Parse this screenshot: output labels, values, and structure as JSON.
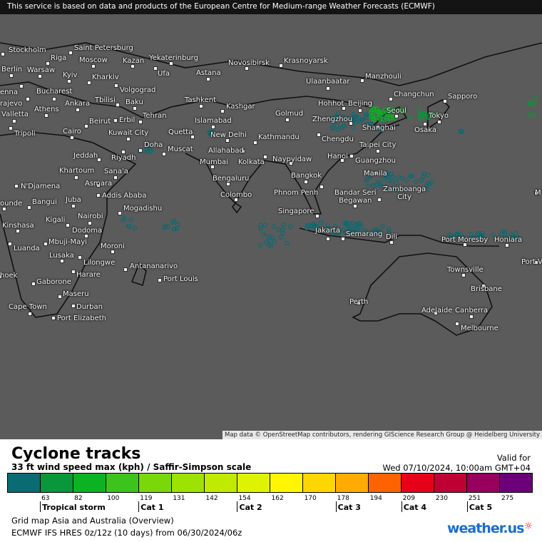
{
  "header": {
    "notice": "This service is based on data and products of the European Centre for Medium-range Weather Forecasts (ECMWF)"
  },
  "map": {
    "attribution": "Map data © OpenStreetMap contributors, rendering GIScience Research Group @ Heidelberg University",
    "background_color": "#5b5b5b",
    "cities": [
      "Stockholm",
      "Saint Petersburg",
      "Riga",
      "Moscow",
      "Kazan",
      "Yekaterinburg",
      "Novosibirsk",
      "Krasnoyarsk",
      "Berlin",
      "Warsaw",
      "Kyiv",
      "Kharkiv",
      "Ufa",
      "Astana",
      "Ulaanbaatar",
      "Manzhouli",
      "enna",
      "Bucharest",
      "Volgograd",
      "Tbilisi",
      "Baku",
      "Tashkent",
      "Kashgar",
      "rajevo",
      "Ankara",
      "Athens",
      "Valletta",
      "Beirut",
      "Erbil",
      "Tehran",
      "Islamabad",
      "Hohhot",
      "Beijing",
      "Changchun",
      "Sapporo",
      "Golmud",
      "Zhengzhou",
      "Seoul",
      "Tokyo",
      "Shanghai",
      "Osaka",
      "Tripoli",
      "Cairo",
      "Kuwait City",
      "Quetta",
      "New Delhi",
      "Kathmandu",
      "Chengdu",
      "Taipei City",
      "Doha",
      "Muscat",
      "Allahabad",
      "Kolkata",
      "Jeddah",
      "Riyadh",
      "Mumbai",
      "Hanoi",
      "Guangzhou",
      "Naypyidaw",
      "Khartoum",
      "Sana'a",
      "Bengaluru",
      "N'Djamena",
      "Asmara",
      "Manila",
      "Bangkok",
      "Addis Ababa",
      "Colombo",
      "Zamboanga City",
      "Phnom Penh",
      "Bandar Seri Begawan",
      "Bangui",
      "Juba",
      "ounde",
      "Mogadishu",
      "Singapore",
      "Kinshasa",
      "Kigali",
      "Nairobi",
      "Dodoma",
      "Jakarta",
      "Semarang",
      "Dili",
      "Port Moresby",
      "Honiara",
      "Mbuji-Mayi",
      "Luanda",
      "Moroni",
      "Lusaka",
      "Lilongwe",
      "Port V",
      "Antananarivo",
      "Townsville",
      "hoek",
      "Harare",
      "Port Louis",
      "Gaborone",
      "Brisbane",
      "Maseru",
      "Durban",
      "Cape Town",
      "Perth",
      "Adelaide",
      "Canberra",
      "Port Elizabeth",
      "Melbourne",
      "M"
    ]
  },
  "legend": {
    "title": "Cyclone tracks",
    "subtitle": "33 ft wind speed max (kph) / Saffir-Simpson scale",
    "valid_label": "Valid for",
    "valid_date": "Wed 07/10/2024, 10:00am GMT+04",
    "colors": [
      "#0b6b72",
      "#0a963a",
      "#0bb222",
      "#3cc41c",
      "#7ad80a",
      "#9de200",
      "#c0ea00",
      "#def300",
      "#fff600",
      "#ffd600",
      "#ffab00",
      "#ff6300",
      "#e60019",
      "#bf0033",
      "#97005c",
      "#6b0078"
    ],
    "ticks": [
      "63",
      "82",
      "100",
      "119",
      "131",
      "142",
      "154",
      "162",
      "170",
      "178",
      "194",
      "209",
      "230",
      "251",
      "275"
    ],
    "categories": [
      {
        "label": "Tropical storm",
        "at": "63"
      },
      {
        "label": "Cat 1",
        "at": "119"
      },
      {
        "label": "Cat 2",
        "at": "154"
      },
      {
        "label": "Cat 3",
        "at": "178"
      },
      {
        "label": "Cat 4",
        "at": "209"
      },
      {
        "label": "Cat 5",
        "at": "251"
      }
    ],
    "grid_map": "Grid map Asia and Australia (Overview)",
    "model": "ECMWF IFS HRES 0z/12z (10 days) from  06/30/2024/06z",
    "logo": "weather.us"
  }
}
